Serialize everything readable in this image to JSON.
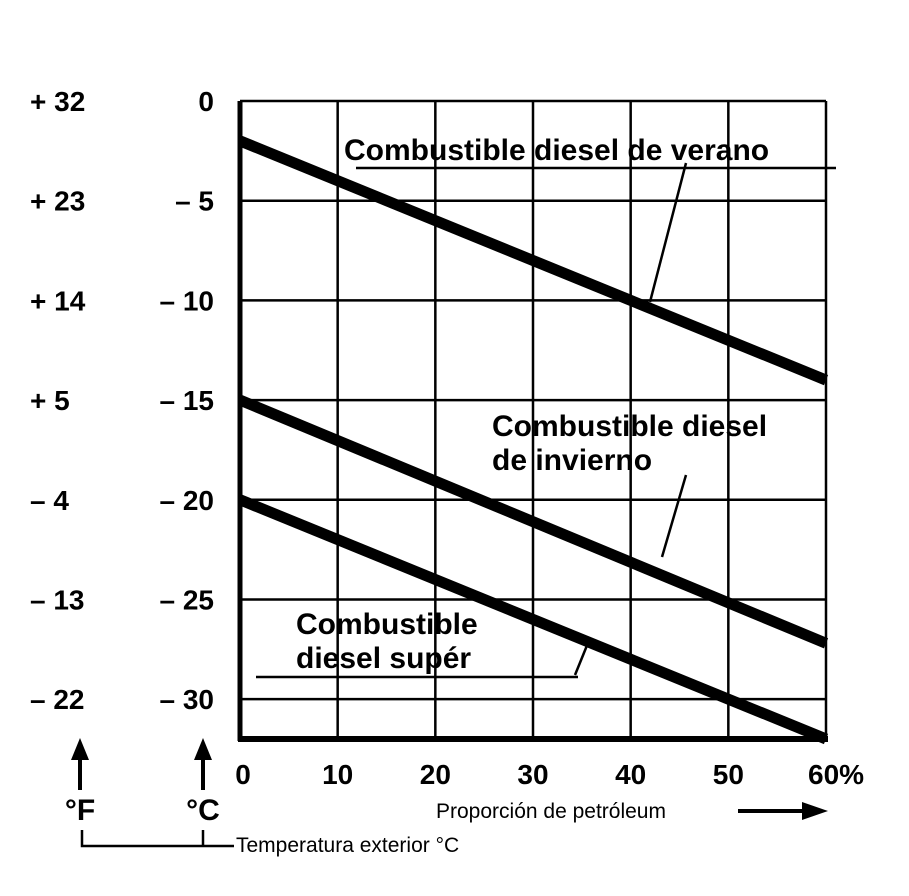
{
  "chart_data": {
    "type": "line",
    "x_axis": {
      "label": "Proporción de petróleum",
      "ticks": [
        "0",
        "10",
        "20",
        "30",
        "40",
        "50",
        "60%"
      ],
      "range": [
        0,
        60
      ]
    },
    "y_axis_celsius": {
      "unit": "°C",
      "ticks": [
        "0",
        "–  5",
        "– 10",
        "– 15",
        "– 20",
        "– 25",
        "– 30"
      ],
      "range": [
        -32,
        0
      ]
    },
    "y_axis_fahrenheit": {
      "unit": "°F",
      "ticks": [
        "+ 32",
        "+ 23",
        "+ 14",
        "+   5",
        "–   4",
        "–  13",
        "– 22"
      ]
    },
    "caption": "Temperatura exterior °C",
    "grid": true,
    "series": [
      {
        "name_lines": [
          "Combustible diesel de verano"
        ],
        "x": [
          0,
          60
        ],
        "y": [
          -2,
          -14
        ]
      },
      {
        "name_lines": [
          "Combustible diesel",
          "de invierno"
        ],
        "x": [
          0,
          60
        ],
        "y": [
          -15,
          -27.2
        ]
      },
      {
        "name_lines": [
          "Combustible",
          "diesel supér"
        ],
        "x": [
          0,
          60
        ],
        "y": [
          -20,
          -32
        ]
      }
    ]
  },
  "colors": {
    "ink": "#000000",
    "background": "#ffffff"
  }
}
